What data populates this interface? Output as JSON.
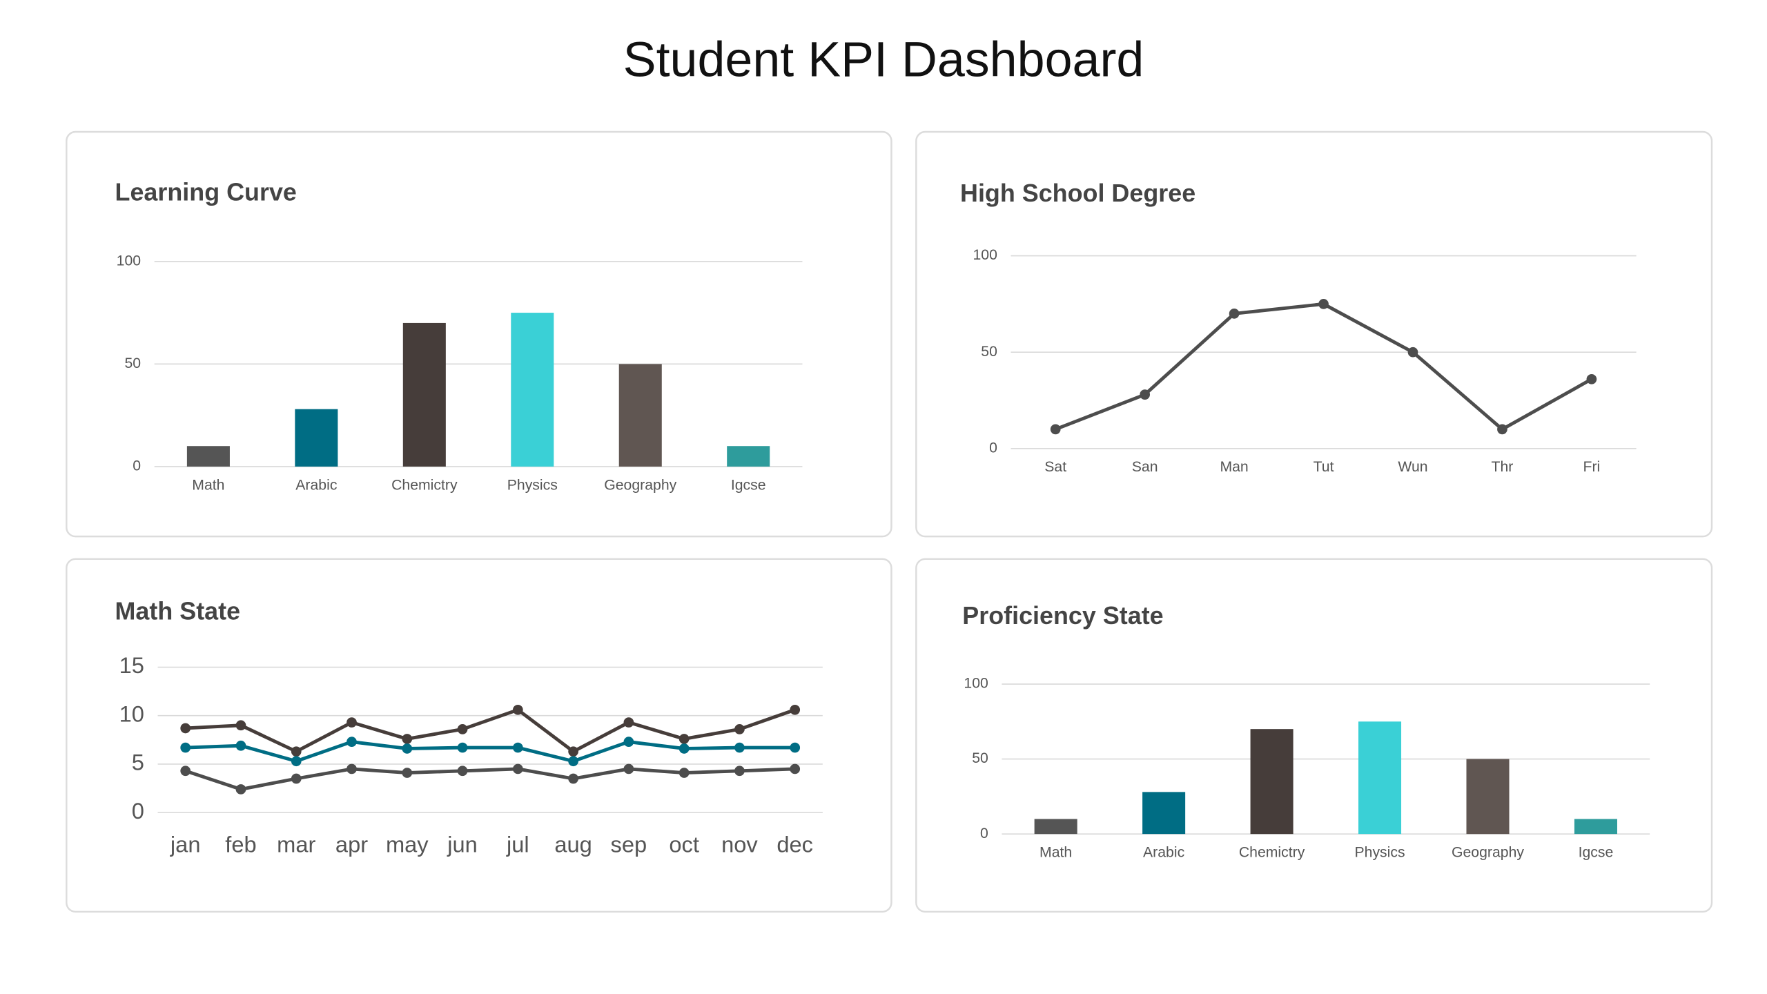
{
  "title": "Student KPI Dashboard",
  "chart_data": [
    {
      "type": "bar",
      "title": "Learning Curve",
      "categories": [
        "Math",
        "Arabic",
        "Chemictry",
        "Physics",
        "Geography",
        "Igcse"
      ],
      "values": [
        10,
        28,
        70,
        75,
        50,
        10
      ],
      "colors": [
        "#555555",
        "#006d84",
        "#463d3a",
        "#3ad0d6",
        "#605652",
        "#2e9c9c"
      ],
      "ylim": [
        0,
        100
      ],
      "yticks": [
        0,
        50,
        100
      ],
      "grid": true
    },
    {
      "type": "line",
      "title": "High School Degree",
      "categories": [
        "Sat",
        "San",
        "Man",
        "Tut",
        "Wun",
        "Thr",
        "Fri"
      ],
      "values": [
        10,
        28,
        70,
        75,
        50,
        10,
        36
      ],
      "color": "#4d4d4d",
      "ylim": [
        0,
        100
      ],
      "yticks": [
        0,
        50,
        100
      ],
      "grid": true
    },
    {
      "type": "line",
      "title": "Math State",
      "categories": [
        "jan",
        "feb",
        "mar",
        "apr",
        "may",
        "jun",
        "jul",
        "aug",
        "sep",
        "oct",
        "nov",
        "dec"
      ],
      "series": [
        {
          "color": "#463d3a",
          "values": [
            8.7,
            9,
            6.3,
            9.3,
            7.6,
            8.6,
            10.6,
            6.3,
            9.3,
            7.6,
            8.6,
            10.6
          ]
        },
        {
          "color": "#006d84",
          "values": [
            6.7,
            6.9,
            5.3,
            7.3,
            6.6,
            6.7,
            6.7,
            5.3,
            7.3,
            6.6,
            6.7,
            6.7
          ]
        },
        {
          "color": "#4d4d4d",
          "values": [
            4.3,
            2.4,
            3.5,
            4.5,
            4.1,
            4.3,
            4.5,
            3.5,
            4.5,
            4.1,
            4.3,
            4.5
          ]
        }
      ],
      "ylim": [
        0,
        15
      ],
      "yticks": [
        0,
        5,
        10,
        15
      ],
      "grid": true
    },
    {
      "type": "bar",
      "title": "Proficiency State",
      "categories": [
        "Math",
        "Arabic",
        "Chemictry",
        "Physics",
        "Geography",
        "Igcse"
      ],
      "values": [
        10,
        28,
        70,
        75,
        50,
        10
      ],
      "colors": [
        "#555555",
        "#006d84",
        "#463d3a",
        "#3ad0d6",
        "#605652",
        "#2e9c9c"
      ],
      "ylim": [
        0,
        100
      ],
      "yticks": [
        0,
        50,
        100
      ],
      "grid": true
    }
  ]
}
